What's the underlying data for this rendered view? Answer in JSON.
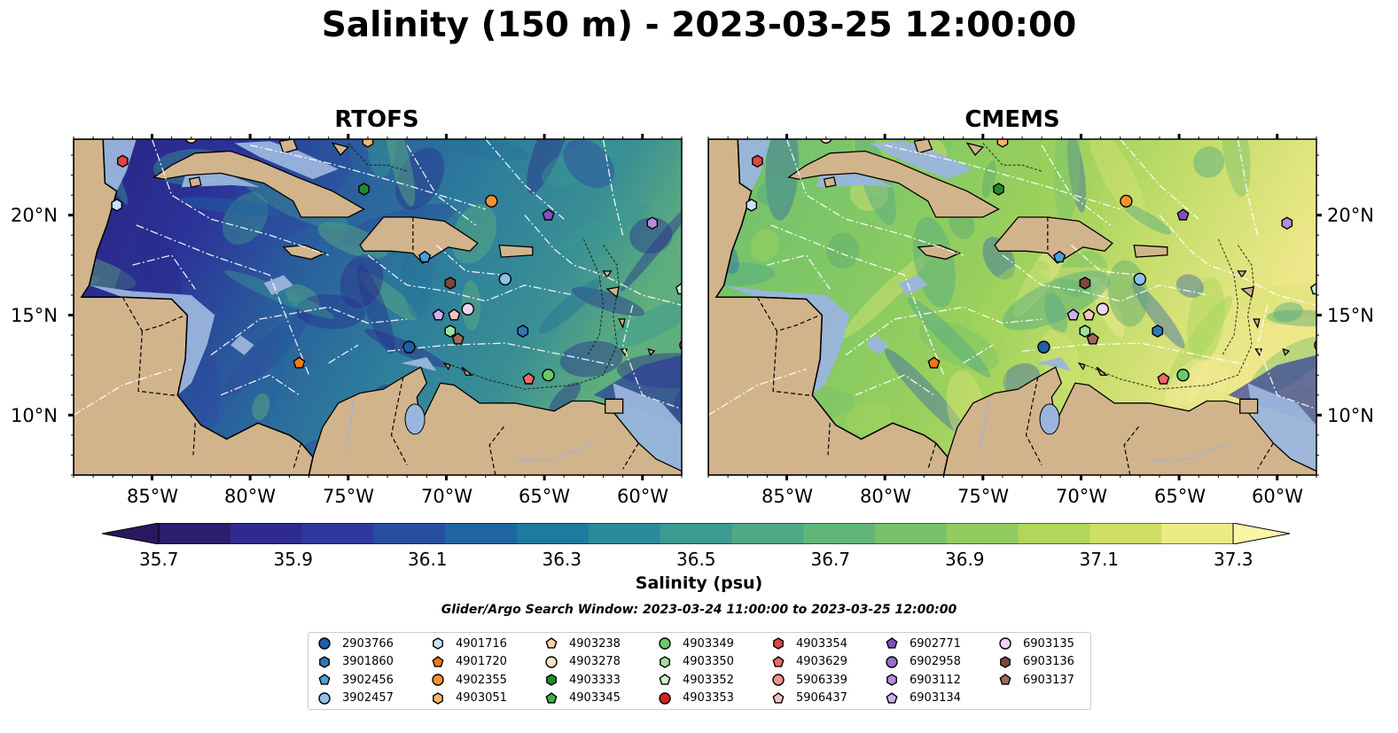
{
  "title": "Salinity (150 m) - 2023-03-25 12:00:00",
  "panels": [
    {
      "title": "RTOFS",
      "theme": "rtofs"
    },
    {
      "title": "CMEMS",
      "theme": "cmems"
    }
  ],
  "x_ticks": [
    "85°W",
    "80°W",
    "75°W",
    "70°W",
    "65°W",
    "60°W"
  ],
  "y_ticks": [
    "20°N",
    "15°N",
    "10°N"
  ],
  "colorbar": {
    "label": "Salinity (psu)",
    "ticks": [
      "35.7",
      "35.9",
      "36.1",
      "36.3",
      "36.5",
      "36.7",
      "36.9",
      "37.1",
      "37.3"
    ],
    "colors": [
      "#2a1e6e",
      "#2e2a8e",
      "#2d3a9c",
      "#26509f",
      "#1e66a0",
      "#1f7a9f",
      "#2a8b9a",
      "#3b9a92",
      "#4fa886",
      "#62b67a",
      "#78c26c",
      "#92cc5e",
      "#b0d65a",
      "#cfdf66",
      "#ecea84"
    ]
  },
  "search_window": "Glider/Argo Search Window: 2023-03-24 11:00:00 to 2023-03-25 12:00:00",
  "legend": [
    {
      "label": "2903766",
      "color": "#1f5fa6",
      "shape": "circle"
    },
    {
      "label": "3901860",
      "color": "#2f78b4",
      "shape": "hexagon"
    },
    {
      "label": "3902456",
      "color": "#4aa0dc",
      "shape": "pentagon"
    },
    {
      "label": "3902457",
      "color": "#8fc0ea",
      "shape": "circle"
    },
    {
      "label": "4901716",
      "color": "#c6e4f7",
      "shape": "hexagon"
    },
    {
      "label": "4901720",
      "color": "#f07a14",
      "shape": "pentagon"
    },
    {
      "label": "4902355",
      "color": "#f5922e",
      "shape": "circle"
    },
    {
      "label": "4903051",
      "color": "#f9b46a",
      "shape": "hexagon"
    },
    {
      "label": "4903238",
      "color": "#fbd0a0",
      "shape": "pentagon"
    },
    {
      "label": "4903278",
      "color": "#fde2c8",
      "shape": "circle"
    },
    {
      "label": "4903333",
      "color": "#1e8c2c",
      "shape": "hexagon"
    },
    {
      "label": "4903345",
      "color": "#3eb04a",
      "shape": "pentagon"
    },
    {
      "label": "4903349",
      "color": "#6cc86a",
      "shape": "circle"
    },
    {
      "label": "4903350",
      "color": "#9de09a",
      "shape": "hexagon"
    },
    {
      "label": "4903352",
      "color": "#c8f4c6",
      "shape": "pentagon"
    },
    {
      "label": "4903353",
      "color": "#d42222",
      "shape": "circle"
    },
    {
      "label": "4903354",
      "color": "#e04444",
      "shape": "hexagon"
    },
    {
      "label": "4903629",
      "color": "#ec6a6a",
      "shape": "pentagon"
    },
    {
      "label": "5906339",
      "color": "#f39090",
      "shape": "circle"
    },
    {
      "label": "5906437",
      "color": "#f9c0c0",
      "shape": "pentagon"
    },
    {
      "label": "6902771",
      "color": "#8050c0",
      "shape": "pentagon"
    },
    {
      "label": "6902958",
      "color": "#9a6cd0",
      "shape": "circle"
    },
    {
      "label": "6903112",
      "color": "#b48ce0",
      "shape": "hexagon"
    },
    {
      "label": "6903134",
      "color": "#cdb0ee",
      "shape": "pentagon"
    },
    {
      "label": "6903135",
      "color": "#ead4f8",
      "shape": "circle"
    },
    {
      "label": "6903136",
      "color": "#7a4a3a",
      "shape": "hexagon"
    },
    {
      "label": "6903137",
      "color": "#a06a55",
      "shape": "pentagon"
    }
  ],
  "floats": [
    {
      "id": "4903354",
      "lon": -86.5,
      "lat": 22.7
    },
    {
      "id": "4901716",
      "lon": -86.8,
      "lat": 20.5
    },
    {
      "id": "4903278",
      "lon": -83.0,
      "lat": 23.9
    },
    {
      "id": "4903051",
      "lon": -74.0,
      "lat": 23.7
    },
    {
      "id": "4903333",
      "lon": -74.2,
      "lat": 21.3
    },
    {
      "id": "4902355",
      "lon": -67.7,
      "lat": 20.7
    },
    {
      "id": "6902771",
      "lon": -64.8,
      "lat": 20.0
    },
    {
      "id": "6903112",
      "lon": -59.5,
      "lat": 19.6
    },
    {
      "id": "4903352",
      "lon": -58.0,
      "lat": 16.3
    },
    {
      "id": "5906339",
      "lon": -57.8,
      "lat": 13.5
    },
    {
      "id": "3902456",
      "lon": -71.1,
      "lat": 17.9
    },
    {
      "id": "3902457",
      "lon": -67.0,
      "lat": 16.8
    },
    {
      "id": "6903136",
      "lon": -69.8,
      "lat": 16.6
    },
    {
      "id": "6903134",
      "lon": -70.4,
      "lat": 15.0
    },
    {
      "id": "5906437",
      "lon": -69.6,
      "lat": 15.0
    },
    {
      "id": "6903135",
      "lon": -68.9,
      "lat": 15.3
    },
    {
      "id": "4903350",
      "lon": -69.8,
      "lat": 14.2
    },
    {
      "id": "6903137",
      "lon": -69.4,
      "lat": 13.8
    },
    {
      "id": "3901860",
      "lon": -66.1,
      "lat": 14.2
    },
    {
      "id": "2903766",
      "lon": -71.9,
      "lat": 13.4
    },
    {
      "id": "4901720",
      "lon": -77.5,
      "lat": 12.6
    },
    {
      "id": "4903629",
      "lon": -65.8,
      "lat": 11.8
    },
    {
      "id": "4903349",
      "lon": -64.8,
      "lat": 12.0
    }
  ]
}
